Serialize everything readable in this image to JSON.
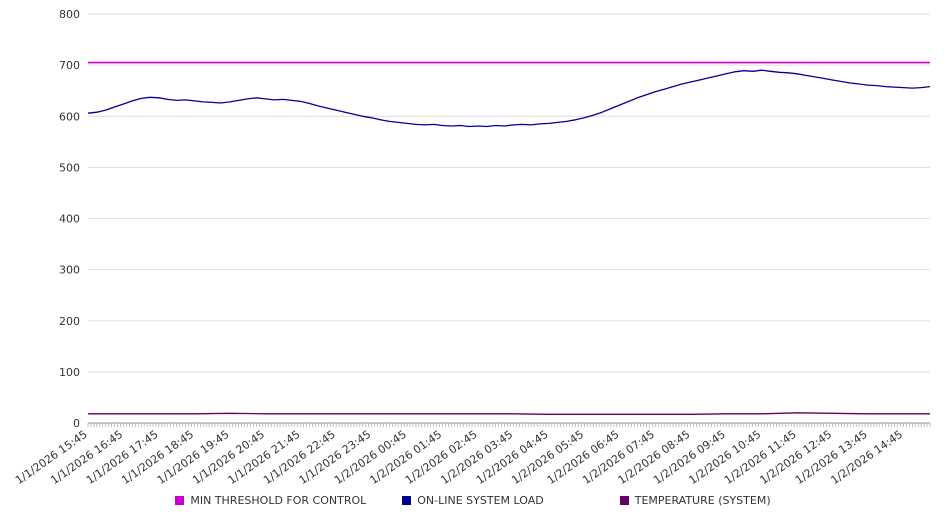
{
  "chart_data": {
    "type": "line",
    "title": "",
    "xlabel": "",
    "ylabel": "",
    "y_axis": {
      "min": 0,
      "max": 800,
      "step": 100
    },
    "grid": true,
    "legend_position": "bottom",
    "x_labels": [
      "1/1/2026 15:45",
      "1/1/2026 16:45",
      "1/1/2026 17:45",
      "1/1/2026 18:45",
      "1/1/2026 19:45",
      "1/1/2026 20:45",
      "1/1/2026 21:45",
      "1/1/2026 22:45",
      "1/1/2026 23:45",
      "1/2/2026 00:45",
      "1/2/2026 01:45",
      "1/2/2026 02:45",
      "1/2/2026 03:45",
      "1/2/2026 04:45",
      "1/2/2026 05:45",
      "1/2/2026 06:45",
      "1/2/2026 07:45",
      "1/2/2026 08:45",
      "1/2/2026 09:45",
      "1/2/2026 10:45",
      "1/2/2026 11:45",
      "1/2/2026 12:45",
      "1/2/2026 13:45",
      "1/2/2026 14:45"
    ],
    "x_label_interval_min": 60,
    "x_total_minutes": 1425,
    "minor_tick_min": 5,
    "series": [
      {
        "name": "MIN THRESHOLD FOR CONTROL",
        "color": "#cc00cc",
        "type": "hline",
        "value": 705
      },
      {
        "name": "ON-LINE SYSTEM LOAD",
        "color": "#000099",
        "type": "line",
        "step_min": 15,
        "values": [
          606,
          608,
          612,
          618,
          624,
          630,
          635,
          637,
          636,
          633,
          631,
          632,
          630,
          628,
          627,
          626,
          628,
          631,
          634,
          636,
          634,
          632,
          633,
          631,
          629,
          625,
          620,
          616,
          612,
          608,
          604,
          600,
          597,
          593,
          590,
          588,
          586,
          584,
          583,
          584,
          582,
          581,
          582,
          580,
          581,
          580,
          582,
          581,
          583,
          584,
          583,
          585,
          586,
          588,
          590,
          593,
          597,
          602,
          608,
          615,
          622,
          629,
          636,
          642,
          648,
          653,
          658,
          663,
          667,
          671,
          675,
          679,
          683,
          687,
          689,
          688,
          690,
          688,
          686,
          685,
          683,
          680,
          677,
          674,
          671,
          668,
          665,
          663,
          661,
          660,
          658,
          657,
          656,
          655,
          656,
          658
        ]
      },
      {
        "name": "TEMPERATURE (SYSTEM)",
        "color": "#660066",
        "type": "line",
        "step_min": 60,
        "extend_to_end": true,
        "values": [
          18,
          18,
          18,
          18,
          19,
          18,
          18,
          18,
          18,
          18,
          18,
          18,
          18,
          17,
          17,
          17,
          17,
          17,
          18,
          18,
          20,
          19,
          18,
          18
        ]
      }
    ]
  }
}
